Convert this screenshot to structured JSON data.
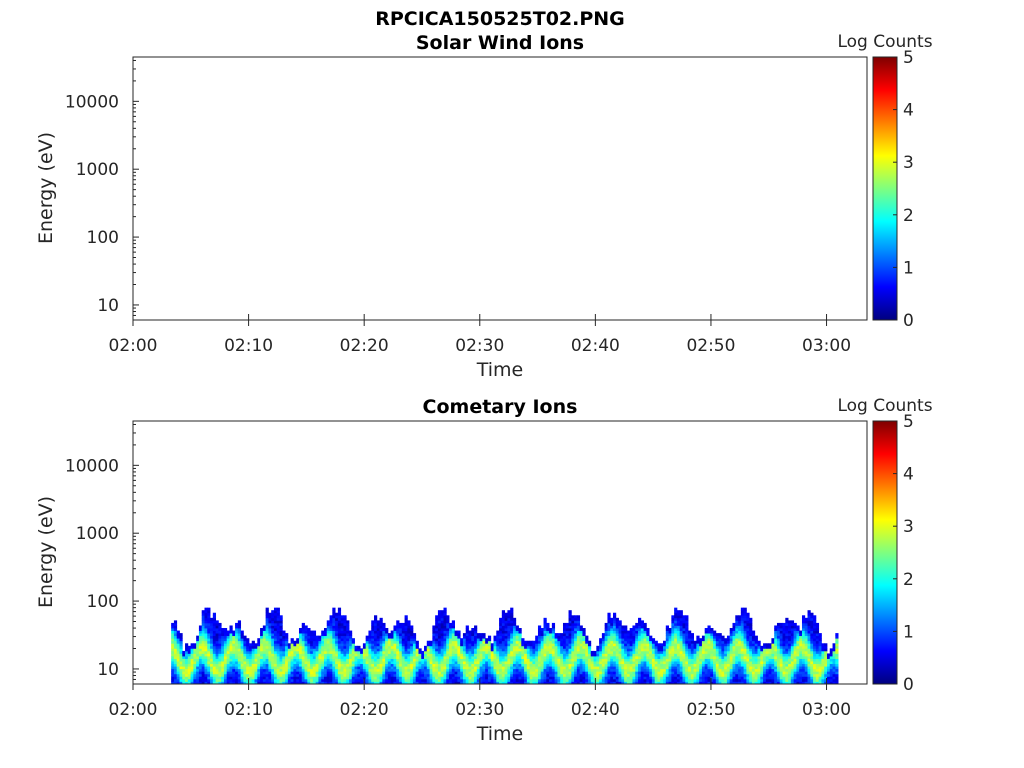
{
  "figure_title": "RPCICA150525T02.PNG",
  "colors": {
    "colormap_stops": [
      "#00007f",
      "#0000ff",
      "#007fff",
      "#00ffff",
      "#7fff7f",
      "#ffff00",
      "#ff7f00",
      "#ff0000",
      "#7f0000"
    ]
  },
  "chart_data": [
    {
      "type": "heatmap",
      "title": "Solar Wind Ions",
      "xlabel": "Time",
      "ylabel": "Energy (eV)",
      "x_ticks": [
        "02:00",
        "02:10",
        "02:20",
        "02:30",
        "02:40",
        "02:50",
        "03:00"
      ],
      "x_range_minutes": [
        0,
        63.5
      ],
      "y_scale": "log",
      "y_ticks": [
        "10",
        "100",
        "1000",
        "10000"
      ],
      "y_range": [
        6,
        45000
      ],
      "colorbar": {
        "label": "Log Counts",
        "ticks": [
          "0",
          "1",
          "2",
          "3",
          "4",
          "5"
        ],
        "range": [
          0,
          5
        ]
      },
      "data": "empty"
    },
    {
      "type": "heatmap",
      "title": "Cometary Ions",
      "xlabel": "Time",
      "ylabel": "Energy (eV)",
      "x_ticks": [
        "02:00",
        "02:10",
        "02:20",
        "02:30",
        "02:40",
        "02:50",
        "03:00"
      ],
      "x_range_minutes": [
        0,
        63.5
      ],
      "y_scale": "log",
      "y_ticks": [
        "10",
        "100",
        "1000",
        "10000"
      ],
      "y_range": [
        6,
        45000
      ],
      "colorbar": {
        "label": "Log Counts",
        "ticks": [
          "0",
          "1",
          "2",
          "3",
          "4",
          "5"
        ],
        "range": [
          0,
          5
        ]
      },
      "data_extent": {
        "time_start": "02:03",
        "time_end": "03:01",
        "energy_min_eV": 6,
        "energy_max_eV": 80
      },
      "typical_log_counts": {
        "low_energy_core": 2.3,
        "mid_band": 1.5,
        "upper_edge": 0.5
      }
    }
  ]
}
